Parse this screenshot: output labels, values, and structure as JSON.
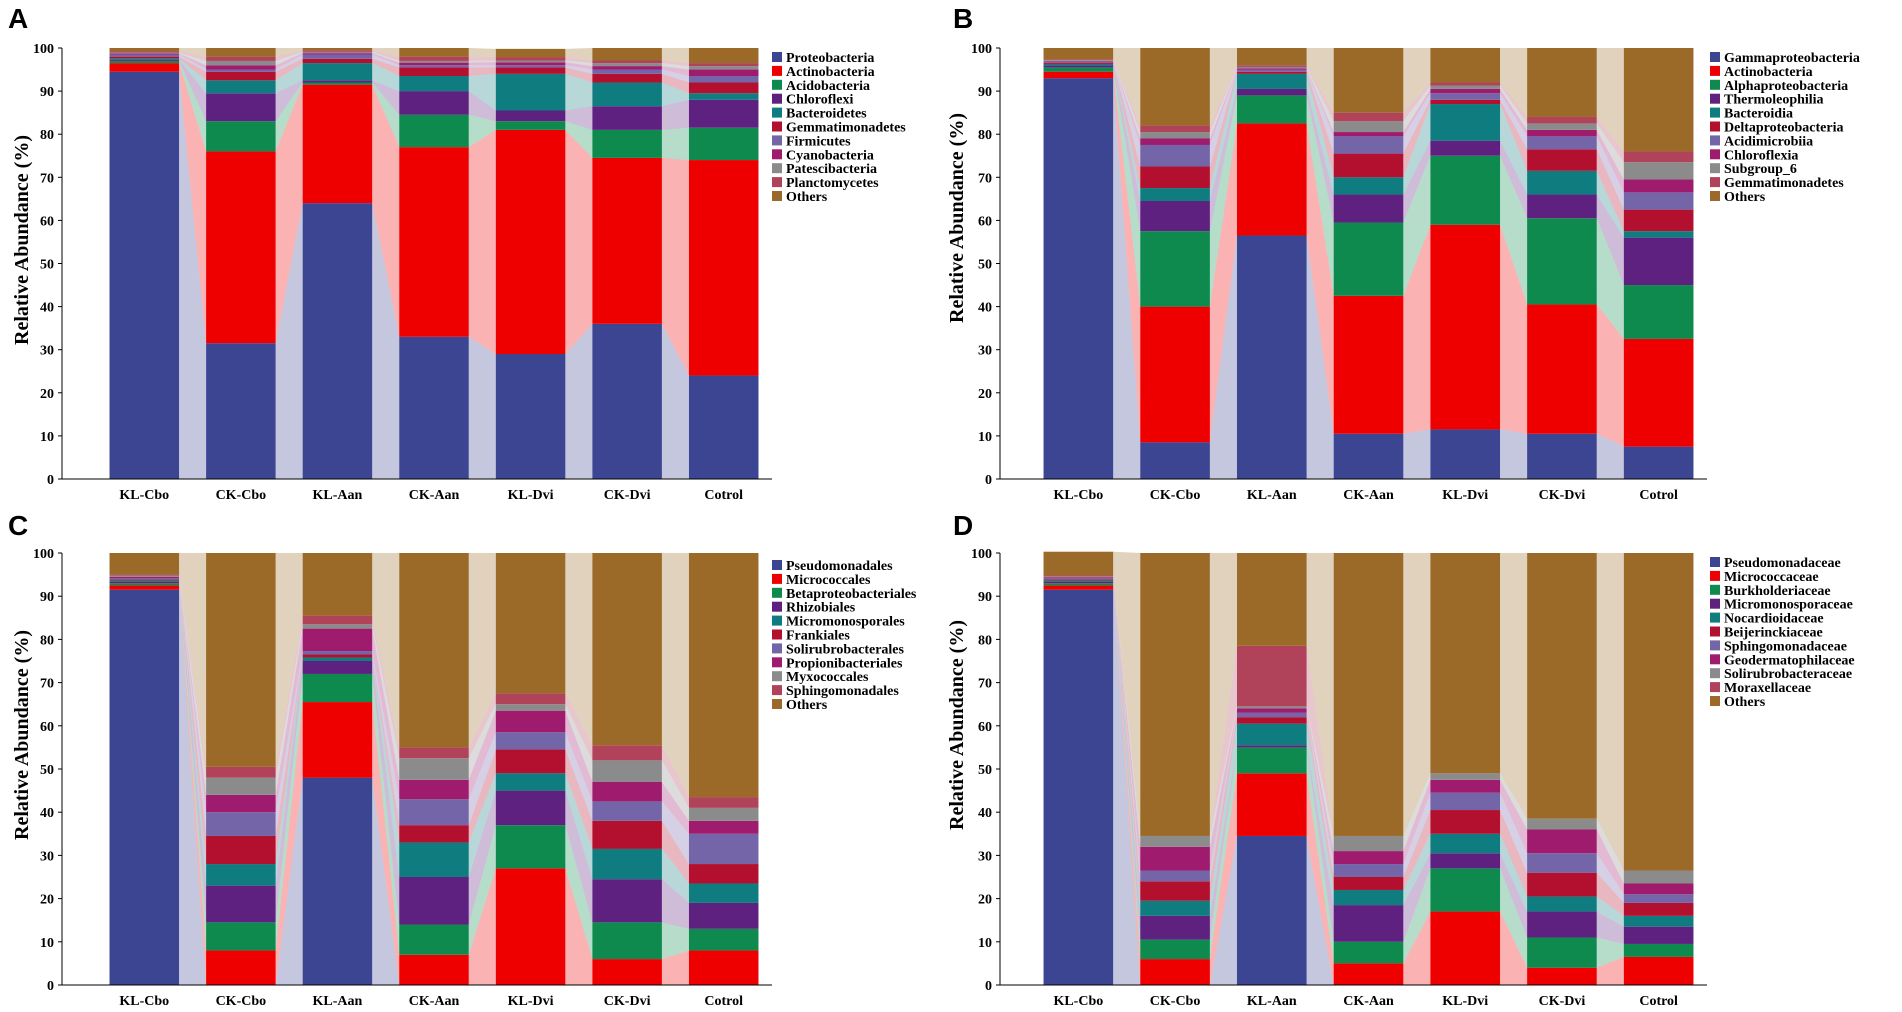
{
  "chart_data": [
    {
      "panel_label": "A",
      "type": "bar",
      "stacked": true,
      "ylabel": "Relative Abundance (%)",
      "ylim": [
        0,
        100
      ],
      "yticks": [
        "0",
        "10",
        "20",
        "30",
        "40",
        "50",
        "60",
        "70",
        "80",
        "90",
        "100"
      ],
      "categories": [
        "KL-Cbo",
        "CK-Cbo",
        "KL-Aan",
        "CK-Aan",
        "KL-Dvi",
        "CK-Dvi",
        "Cotrol"
      ],
      "series": [
        {
          "name": "Proteobacteria",
          "color": "#3B4592",
          "values": [
            94.5,
            31.5,
            64.0,
            33.0,
            29.0,
            36.0,
            24.0
          ]
        },
        {
          "name": "Actinobacteria",
          "color": "#EE0000",
          "values": [
            2.0,
            44.5,
            27.5,
            44.0,
            52.0,
            38.5,
            50.0
          ]
        },
        {
          "name": "Acidobacteria",
          "color": "#0E8A4E",
          "values": [
            0.5,
            7.0,
            0.5,
            7.5,
            2.0,
            6.5,
            7.5
          ]
        },
        {
          "name": "Chloroflexi",
          "color": "#5E2180",
          "values": [
            0.3,
            6.5,
            0.5,
            5.5,
            2.5,
            5.5,
            6.5
          ]
        },
        {
          "name": "Bacteroidetes",
          "color": "#0F7C80",
          "values": [
            0.3,
            3.0,
            4.0,
            3.5,
            8.5,
            5.5,
            1.5
          ]
        },
        {
          "name": "Gemmatimonadetes",
          "color": "#B2102E",
          "values": [
            0.4,
            2.0,
            1.0,
            2.0,
            1.5,
            2.0,
            2.5
          ]
        },
        {
          "name": "Firmicutes",
          "color": "#7464A8",
          "values": [
            0.5,
            0.5,
            1.0,
            0.5,
            0.5,
            1.0,
            1.5
          ]
        },
        {
          "name": "Cyanobacteria",
          "color": "#9E1B6E",
          "values": [
            0.2,
            1.0,
            0.3,
            0.6,
            0.7,
            0.8,
            1.5
          ]
        },
        {
          "name": "Patescibacteria",
          "color": "#8B8B8B",
          "values": [
            0.2,
            1.0,
            0.3,
            0.4,
            0.4,
            0.7,
            0.8
          ]
        },
        {
          "name": "Planctomycetes",
          "color": "#B0435A",
          "values": [
            0.3,
            1.0,
            0.4,
            1.0,
            0.8,
            0.6,
            0.7
          ]
        },
        {
          "name": "Others",
          "color": "#9C6A28",
          "values": [
            0.8,
            2.0,
            0.5,
            2.0,
            1.9,
            2.9,
            3.5
          ]
        }
      ]
    },
    {
      "panel_label": "B",
      "type": "bar",
      "stacked": true,
      "ylabel": "Relative Abundance (%)",
      "ylim": [
        0,
        100
      ],
      "yticks": [
        "0",
        "10",
        "20",
        "30",
        "40",
        "50",
        "60",
        "70",
        "80",
        "90",
        "100"
      ],
      "categories": [
        "KL-Cbo",
        "CK-Cbo",
        "KL-Aan",
        "CK-Aan",
        "KL-Dvi",
        "CK-Dvi",
        "Cotrol"
      ],
      "series": [
        {
          "name": "Gammaproteobacteria",
          "color": "#3B4592",
          "values": [
            93.0,
            8.5,
            56.5,
            10.5,
            11.5,
            10.5,
            7.5
          ]
        },
        {
          "name": "Actinobacteria",
          "color": "#EE0000",
          "values": [
            1.5,
            31.5,
            26.0,
            32.0,
            47.5,
            30.0,
            25.0
          ]
        },
        {
          "name": "Alphaproteobacteria",
          "color": "#0E8A4E",
          "values": [
            1.0,
            17.5,
            6.5,
            17.0,
            16.0,
            20.0,
            12.5
          ]
        },
        {
          "name": "Thermoleophilia",
          "color": "#5E2180",
          "values": [
            0.5,
            7.0,
            1.5,
            6.5,
            3.5,
            5.5,
            11.0
          ]
        },
        {
          "name": "Bacteroidia",
          "color": "#0F7C80",
          "values": [
            0.3,
            3.0,
            3.5,
            4.0,
            8.5,
            5.5,
            1.5
          ]
        },
        {
          "name": "Deltaproteobacteria",
          "color": "#B2102E",
          "values": [
            0.3,
            5.0,
            0.5,
            5.5,
            1.0,
            5.0,
            5.0
          ]
        },
        {
          "name": "Acidimicrobiia",
          "color": "#7464A8",
          "values": [
            0.3,
            5.0,
            0.5,
            4.0,
            1.5,
            3.0,
            4.0
          ]
        },
        {
          "name": "Chloroflexia",
          "color": "#9E1B6E",
          "values": [
            0.1,
            1.5,
            0.3,
            1.0,
            1.0,
            1.5,
            3.0
          ]
        },
        {
          "name": "Subgroup_6",
          "color": "#8B8B8B",
          "values": [
            0.2,
            1.5,
            0.3,
            2.5,
            0.8,
            1.5,
            4.0
          ]
        },
        {
          "name": "Gemmatimonadetes",
          "color": "#B0435A",
          "values": [
            0.2,
            1.5,
            0.4,
            2.0,
            0.7,
            1.5,
            2.5
          ]
        },
        {
          "name": "Others",
          "color": "#9C6A28",
          "values": [
            2.6,
            18.0,
            4.0,
            15.0,
            8.0,
            16.0,
            24.0
          ]
        }
      ]
    },
    {
      "panel_label": "C",
      "type": "bar",
      "stacked": true,
      "ylabel": "Relative Abundance (%)",
      "ylim": [
        0,
        100
      ],
      "yticks": [
        "0",
        "10",
        "20",
        "30",
        "40",
        "50",
        "60",
        "70",
        "80",
        "90",
        "100"
      ],
      "categories": [
        "KL-Cbo",
        "CK-Cbo",
        "KL-Aan",
        "CK-Aan",
        "KL-Dvi",
        "CK-Dvi",
        "Cotrol"
      ],
      "series": [
        {
          "name": "Pseudomonadales",
          "color": "#3B4592",
          "values": [
            91.5,
            0.0,
            48.0,
            0.0,
            0.0,
            0.0,
            0.0
          ]
        },
        {
          "name": "Micrococcales",
          "color": "#EE0000",
          "values": [
            1.0,
            8.0,
            17.5,
            7.0,
            27.0,
            6.0,
            8.0
          ]
        },
        {
          "name": "Betaproteobacteriales",
          "color": "#0E8A4E",
          "values": [
            0.5,
            6.5,
            6.5,
            7.0,
            10.0,
            8.5,
            5.0
          ]
        },
        {
          "name": "Rhizobiales",
          "color": "#5E2180",
          "values": [
            0.3,
            8.5,
            3.0,
            11.0,
            8.0,
            10.0,
            6.0
          ]
        },
        {
          "name": "Micromonosporales",
          "color": "#0F7C80",
          "values": [
            0.3,
            5.0,
            0.8,
            8.0,
            4.0,
            7.0,
            4.5
          ]
        },
        {
          "name": "Frankiales",
          "color": "#B2102E",
          "values": [
            0.3,
            6.5,
            0.7,
            4.0,
            5.5,
            6.5,
            4.5
          ]
        },
        {
          "name": "Solirubrobacterales",
          "color": "#7464A8",
          "values": [
            0.3,
            5.5,
            0.8,
            6.0,
            4.0,
            4.5,
            7.0
          ]
        },
        {
          "name": "Propionibacteriales",
          "color": "#9E1B6E",
          "values": [
            0.3,
            4.0,
            5.2,
            4.5,
            5.0,
            4.5,
            3.0
          ]
        },
        {
          "name": "Myxococcales",
          "color": "#8B8B8B",
          "values": [
            0.3,
            4.0,
            1.0,
            5.0,
            1.5,
            5.0,
            3.0
          ]
        },
        {
          "name": "Sphingomonadales",
          "color": "#B0435A",
          "values": [
            0.2,
            2.5,
            2.0,
            2.5,
            2.5,
            3.5,
            2.5
          ]
        },
        {
          "name": "Others",
          "color": "#9C6A28",
          "values": [
            5.0,
            49.5,
            14.5,
            45.0,
            32.5,
            44.5,
            56.5
          ]
        }
      ]
    },
    {
      "panel_label": "D",
      "type": "bar",
      "stacked": true,
      "ylabel": "Relative Abundance (%)",
      "ylim": [
        0,
        100
      ],
      "yticks": [
        "0",
        "10",
        "20",
        "30",
        "40",
        "50",
        "60",
        "70",
        "80",
        "90",
        "100"
      ],
      "categories": [
        "KL-Cbo",
        "CK-Cbo",
        "KL-Aan",
        "CK-Aan",
        "KL-Dvi",
        "CK-Dvi",
        "Cotrol"
      ],
      "series": [
        {
          "name": "Pseudomonadaceae",
          "color": "#3B4592",
          "values": [
            91.5,
            0.0,
            34.5,
            0.0,
            0.0,
            0.0,
            0.0
          ]
        },
        {
          "name": "Micrococcaceae",
          "color": "#EE0000",
          "values": [
            1.0,
            6.0,
            14.5,
            5.0,
            17.0,
            4.0,
            6.5
          ]
        },
        {
          "name": "Burkholderiaceae",
          "color": "#0E8A4E",
          "values": [
            0.5,
            4.5,
            6.0,
            5.0,
            10.0,
            7.0,
            3.0
          ]
        },
        {
          "name": "Micromonosporaceae",
          "color": "#5E2180",
          "values": [
            0.3,
            5.5,
            0.5,
            8.5,
            3.5,
            6.0,
            4.0
          ]
        },
        {
          "name": "Nocardioidaceae",
          "color": "#0F7C80",
          "values": [
            0.3,
            3.5,
            5.0,
            3.5,
            4.5,
            3.5,
            2.5
          ]
        },
        {
          "name": "Beijerinckiaceae",
          "color": "#B2102E",
          "values": [
            0.3,
            4.5,
            1.5,
            3.0,
            5.5,
            5.5,
            3.0
          ]
        },
        {
          "name": "Sphingomonadaceae",
          "color": "#7464A8",
          "values": [
            0.3,
            2.5,
            1.0,
            3.0,
            4.0,
            4.5,
            2.0
          ]
        },
        {
          "name": "Geodermatophilaceae",
          "color": "#9E1B6E",
          "values": [
            0.2,
            5.5,
            1.0,
            3.0,
            3.0,
            5.5,
            2.5
          ]
        },
        {
          "name": "Solirubrobacteraceae",
          "color": "#8B8B8B",
          "values": [
            0.2,
            2.5,
            0.5,
            3.5,
            1.5,
            2.5,
            3.0
          ]
        },
        {
          "name": "Moraxellaceae",
          "color": "#B0435A",
          "values": [
            0.2,
            0.0,
            14.0,
            0.0,
            0.0,
            0.0,
            0.0
          ]
        },
        {
          "name": "Others",
          "color": "#9C6A28",
          "values": [
            5.5,
            65.5,
            21.5,
            65.5,
            51.0,
            61.5,
            73.5
          ]
        }
      ]
    }
  ]
}
